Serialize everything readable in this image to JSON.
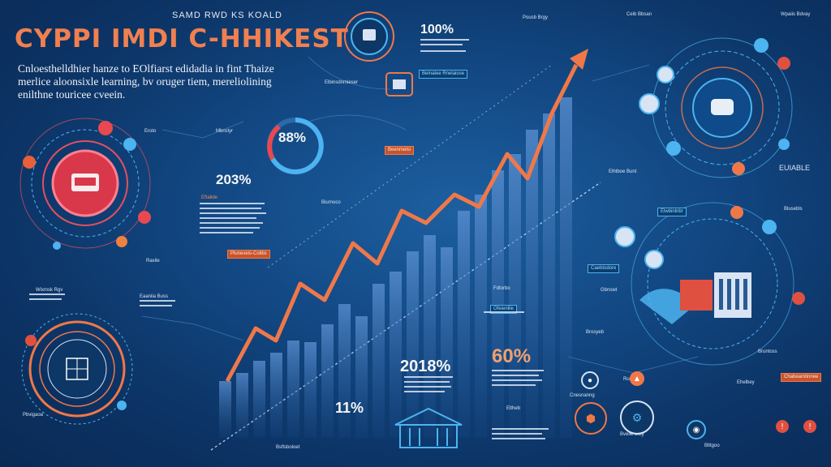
{
  "header": {
    "subtitle": "SAMD RWD KS KOALD",
    "title": "CYPPI IMDI C-HHIKEST",
    "intro": "Cnloesthelldhier hanze to EOlfiarst edidadia in fint Thaize merlice aloonsixle learning, bv oruger tiem, mereliolining enilthne touricee cveein."
  },
  "stats": {
    "s1": "100%",
    "s2": "88%",
    "s3": "203%",
    "s4": "2018%",
    "s5": "60%",
    "s6": "11%"
  },
  "labels": {
    "l1": "Pousb Brgy",
    "l2": "Ceib Bbsan",
    "l3": "Wpaiis Bdvay",
    "l4": "Elbinsdnmieser",
    "l5": "Eroto",
    "l6": "Mbnslyr",
    "l7": "Eftallde",
    "l8": "Biurnoco",
    "l9": "Raxile",
    "l10": "Wixmsk Rgv",
    "l11": "Eaaniia Buss",
    "l12": "Pbvigaoa",
    "l13": "Elhtboe Bunt",
    "l14": "EUIABLE",
    "l15": "Blusebls",
    "l16": "Gbnswt",
    "l17": "Brosyeb",
    "l18": "Bruntoss",
    "l19": "Eltheb",
    "l20": "Bsflsboloet",
    "l21": "Cnesnanng",
    "l22": "Rueb",
    "l23": "Ehelbey",
    "l24": "Bveiie Bvty",
    "l25": "Blttgoo",
    "l26": "Fdtorbo"
  },
  "tags": {
    "t1": "Beinatee Rnelaiose",
    "t2": "Beenmelsi",
    "t3": "Pluneveis-Colibs",
    "t4": "Caebtodore",
    "t5": "Ofeienllie",
    "t6": "Chabeamtinnee",
    "t7": "Elwbinlnbr"
  },
  "colors": {
    "accent_orange": "#f07848",
    "accent_red": "#d8384a",
    "accent_blue": "#4cb4f0",
    "background": "#134a86"
  },
  "chart_data": {
    "type": "line",
    "trend": "rising",
    "series_color": "#f07848"
  }
}
